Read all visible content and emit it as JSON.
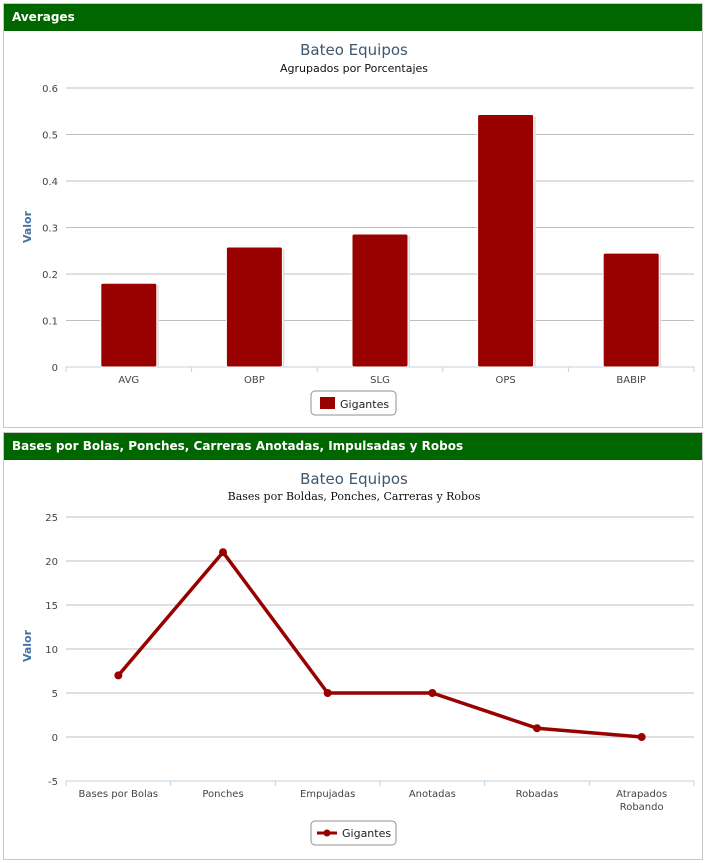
{
  "panels": [
    {
      "header": "Averages"
    },
    {
      "header": "Bases por Bolas, Ponches, Carreras Anotadas, Impulsadas y Robos"
    }
  ],
  "chart_data": [
    {
      "type": "bar",
      "title": "Bateo Equipos",
      "subtitle": "Agrupados por Porcentajes",
      "ylabel": "Valor",
      "categories": [
        "AVG",
        "OBP",
        "SLG",
        "OPS",
        "BABIP"
      ],
      "series": [
        {
          "name": "Gigantes",
          "color": "#990000",
          "values": [
            0.18,
            0.258,
            0.286,
            0.543,
            0.245
          ]
        }
      ],
      "ylim": [
        0,
        0.6
      ],
      "yticks": [
        "0",
        "0.1",
        "0.2",
        "0.3",
        "0.4",
        "0.5",
        "0.6"
      ],
      "grid": true,
      "legend": "bottom-center"
    },
    {
      "type": "line",
      "title": "Bateo Equipos",
      "subtitle": "Bases por Boldas, Ponches, Carreras y Robos",
      "ylabel": "Valor",
      "categories": [
        "Bases por Bolas",
        "Ponches",
        "Empujadas",
        "Anotadas",
        "Robadas",
        "Atrapados Robando"
      ],
      "series": [
        {
          "name": "Gigantes",
          "color": "#990000",
          "values": [
            7,
            21,
            5,
            5,
            1,
            0
          ]
        }
      ],
      "ylim": [
        -5,
        25
      ],
      "yticks": [
        "-5",
        "0",
        "5",
        "10",
        "15",
        "20",
        "25"
      ],
      "grid": true,
      "legend": "bottom-center"
    }
  ]
}
